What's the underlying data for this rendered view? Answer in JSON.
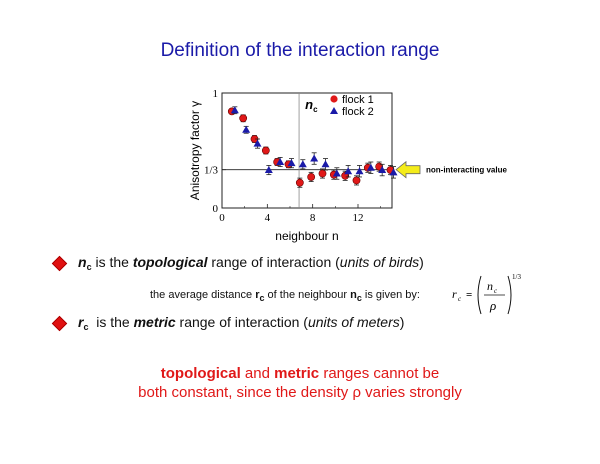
{
  "slide": {
    "title": "Definition of the interaction range",
    "bullet1": {
      "symbol": "n",
      "sub": "c",
      "pre": " is the ",
      "bold": "topological",
      "post": " range of interaction (",
      "ital": "units of birds",
      "end": ")"
    },
    "note": {
      "pre": "the average distance ",
      "r": "r",
      "rsub": "c",
      "mid": " of the neighbour ",
      "n": "n",
      "nsub": "c",
      "post": " is given by:"
    },
    "formula": {
      "lhs": "r",
      "lhs_sub": "c",
      "eq": "=",
      "num": "n",
      "num_sub": "c",
      "den": "ρ",
      "exp": "1/3"
    },
    "bullet2": {
      "symbol": "r",
      "sub": "c",
      "pre": "  is the ",
      "bold": "metric",
      "post": " range of interaction (",
      "ital": "units of meters",
      "end": ")"
    },
    "conclusion": {
      "b1": "topological",
      "t1": " and ",
      "b2": "metric",
      "t2": " ranges cannot be",
      "line2": "both constant, since the density ρ varies strongly"
    }
  },
  "chart_data": {
    "type": "scatter",
    "xlabel": "neighbour n",
    "ylabel": "Anisotropy factor γ",
    "xlim": [
      0,
      15
    ],
    "ylim": [
      0,
      1
    ],
    "xticks": [
      "0",
      "4",
      "8",
      "12"
    ],
    "xtick_values": [
      0,
      4,
      8,
      12
    ],
    "yticks": [
      "0",
      "1/3",
      "1"
    ],
    "ytick_values": [
      0,
      0.3333,
      1
    ],
    "reference_line": {
      "y": 0.3333,
      "label": "non-interacting value"
    },
    "vertical_marker": {
      "x": 6.8,
      "label": "n",
      "label_sub": "c"
    },
    "series": [
      {
        "name": "flock 1",
        "marker": "circle",
        "color": "#e01818",
        "x": [
          1,
          2,
          3,
          4,
          5,
          6,
          7,
          8,
          9,
          10,
          11,
          12,
          13,
          14,
          15
        ],
        "y": [
          0.84,
          0.78,
          0.6,
          0.5,
          0.4,
          0.38,
          0.22,
          0.27,
          0.3,
          0.29,
          0.28,
          0.24,
          0.35,
          0.36,
          0.33
        ],
        "err": [
          0.02,
          0.03,
          0.03,
          0.03,
          0.03,
          0.03,
          0.04,
          0.04,
          0.04,
          0.04,
          0.04,
          0.04,
          0.04,
          0.04,
          0.04
        ]
      },
      {
        "name": "flock 2",
        "marker": "triangle",
        "color": "#1a1aa8",
        "x": [
          1,
          2,
          3,
          4,
          5,
          6,
          7,
          8,
          9,
          10,
          11,
          12,
          13,
          14,
          15
        ],
        "y": [
          0.85,
          0.68,
          0.56,
          0.33,
          0.4,
          0.39,
          0.38,
          0.43,
          0.38,
          0.3,
          0.32,
          0.32,
          0.35,
          0.33,
          0.31
        ],
        "err": [
          0.03,
          0.03,
          0.04,
          0.04,
          0.04,
          0.04,
          0.04,
          0.05,
          0.05,
          0.05,
          0.05,
          0.05,
          0.05,
          0.05,
          0.05
        ]
      }
    ],
    "legend": "top-right"
  }
}
